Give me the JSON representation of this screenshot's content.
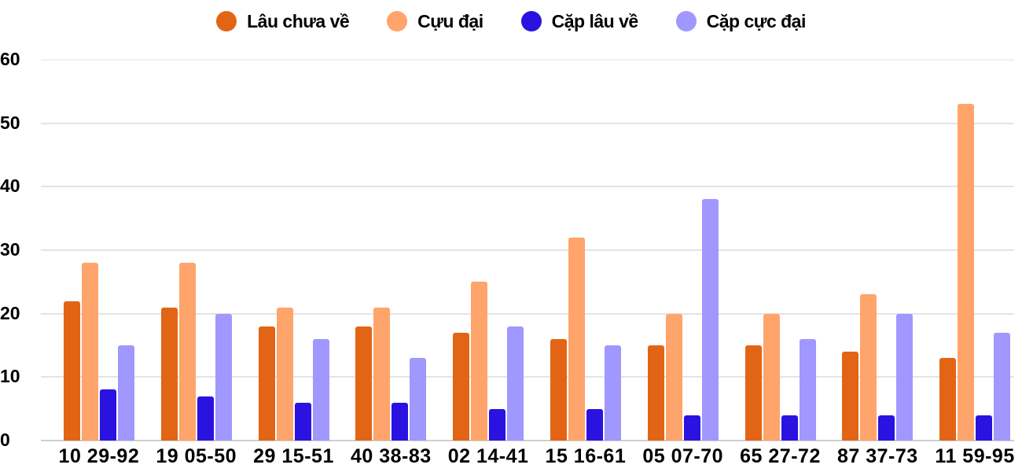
{
  "chart_data": {
    "type": "bar",
    "title": "",
    "xlabel": "",
    "ylabel": "",
    "ylim": [
      0,
      60
    ],
    "yticks": [
      0,
      10,
      20,
      30,
      40,
      50,
      60
    ],
    "grid": true,
    "legend_position": "top",
    "categories": [
      "10 29-92",
      "19 05-50",
      "29 15-51",
      "40 38-83",
      "02 14-41",
      "15 16-61",
      "05 07-70",
      "65 27-72",
      "87 37-73",
      "11 59-95"
    ],
    "series": [
      {
        "name": "Lâu chưa về",
        "color": "#e26516",
        "values": [
          22,
          21,
          18,
          18,
          17,
          16,
          15,
          15,
          14,
          13
        ]
      },
      {
        "name": "Cựu đại",
        "color": "#ffa46a",
        "values": [
          28,
          28,
          21,
          21,
          25,
          32,
          20,
          20,
          23,
          53
        ]
      },
      {
        "name": "Cặp lâu về",
        "color": "#2a12e0",
        "values": [
          8,
          7,
          6,
          6,
          5,
          5,
          4,
          4,
          4,
          4
        ]
      },
      {
        "name": "Cặp cực đại",
        "color": "#a097ff",
        "values": [
          15,
          20,
          16,
          13,
          18,
          15,
          38,
          16,
          20,
          17
        ]
      }
    ]
  }
}
